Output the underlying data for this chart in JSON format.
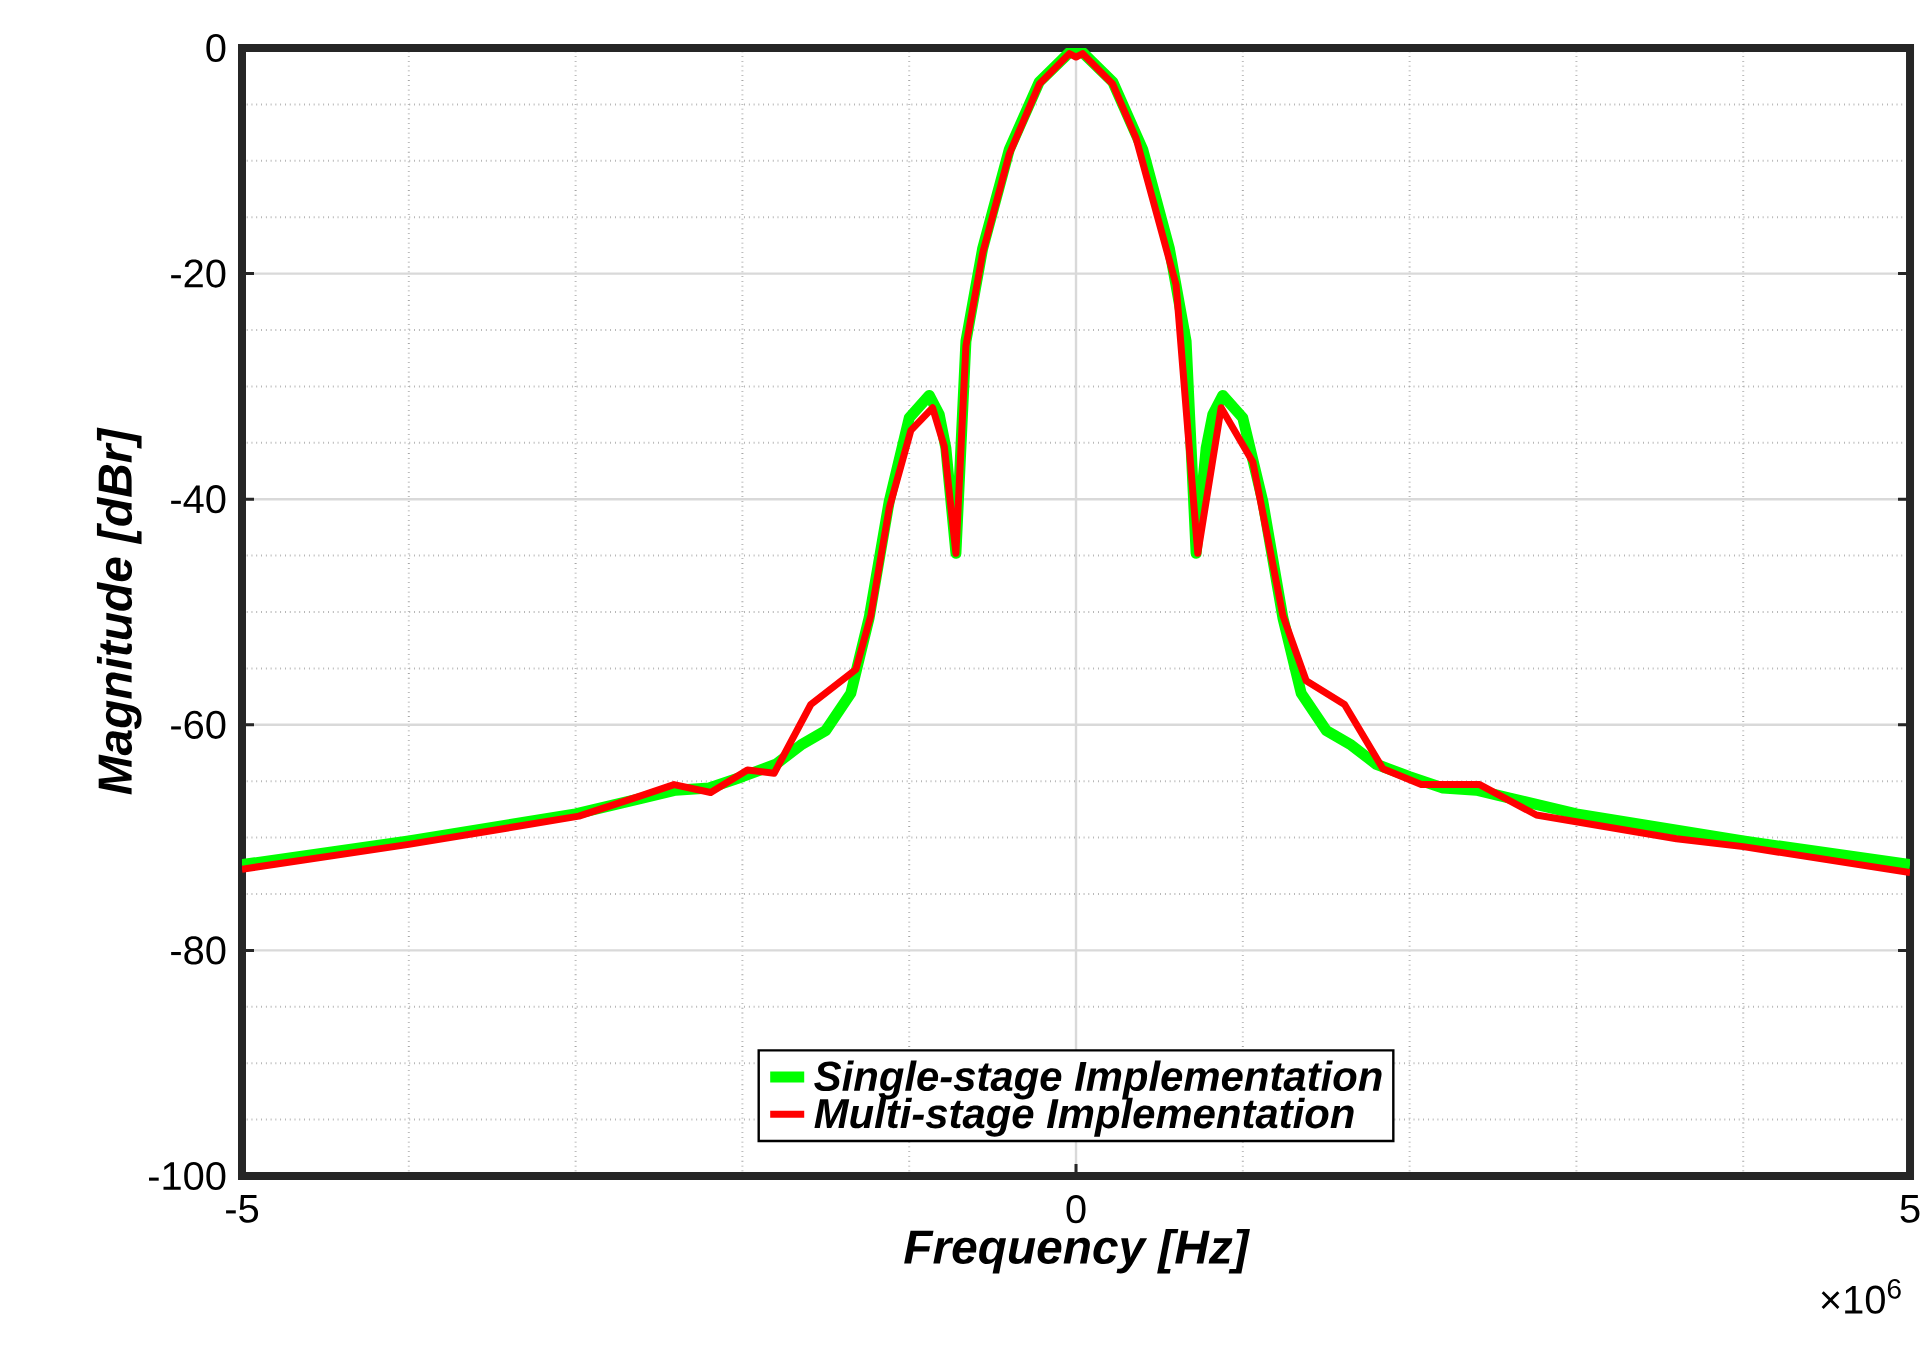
{
  "chart_data": {
    "type": "line",
    "xlabel": "Frequency [Hz]",
    "ylabel": "Magnitude [dBr]",
    "xlim": [
      -5,
      5
    ],
    "xticks": [
      -5,
      0,
      5
    ],
    "ylim": [
      -100,
      0
    ],
    "yticks": [
      -100,
      -80,
      -60,
      -40,
      -20,
      0
    ],
    "grid": true,
    "legend": "bottom",
    "annotations": [
      "×10$^{6}$"
    ],
    "series": [
      {
        "name": "Single-stage Implementation",
        "color": "#00ff00",
        "x": [
          -5,
          -4,
          -3,
          -2.6,
          -2.4,
          -2.2,
          -2,
          -1.8,
          -1.65,
          -1.5,
          -1.35,
          -1.24,
          -1.12,
          -1,
          -0.88,
          -0.82,
          -0.78,
          -0.72,
          -0.66,
          -0.56,
          -0.4,
          -0.22,
          -0.04,
          0,
          0.04,
          0.22,
          0.4,
          0.56,
          0.66,
          0.72,
          0.78,
          0.82,
          0.88,
          1,
          1.12,
          1.24,
          1.35,
          1.5,
          1.65,
          1.8,
          2,
          2.2,
          2.4,
          2.6,
          3,
          4,
          5
        ],
        "values": [
          -72.4,
          -70.3,
          -67.9,
          -66.5,
          -65.8,
          -65.6,
          -64.6,
          -63.5,
          -61.8,
          -60.5,
          -57.2,
          -50.5,
          -40.2,
          -32.8,
          -30.8,
          -32.5,
          -35.5,
          -44.8,
          -26.0,
          -17.8,
          -9.0,
          -3.0,
          -0.4,
          -0.3,
          -0.4,
          -3.0,
          -9.0,
          -17.8,
          -26.0,
          -44.8,
          -35.5,
          -32.5,
          -30.8,
          -32.8,
          -40.2,
          -50.5,
          -57.2,
          -60.5,
          -61.8,
          -63.5,
          -64.6,
          -65.6,
          -65.8,
          -66.5,
          -67.9,
          -70.3,
          -72.4
        ]
      },
      {
        "name": "Multi-stage Implementation",
        "color": "#ff0000",
        "x": [
          -5,
          -4,
          -2.98,
          -2.61,
          -2.41,
          -2.19,
          -1.97,
          -1.81,
          -1.59,
          -1.32,
          -1.23,
          -1.12,
          -0.99,
          -0.86,
          -0.79,
          -0.72,
          -0.66,
          -0.56,
          -0.4,
          -0.22,
          -0.04,
          0,
          0.04,
          0.22,
          0.36,
          0.6,
          0.73,
          0.87,
          1.06,
          1.24,
          1.38,
          1.61,
          1.84,
          2.07,
          2.42,
          2.76,
          3.6,
          4,
          5
        ],
        "values": [
          -72.8,
          -70.6,
          -68.1,
          -66.3,
          -65.3,
          -66.0,
          -64.0,
          -64.3,
          -58.2,
          -55.1,
          -50.3,
          -40.8,
          -33.9,
          -31.9,
          -35.3,
          -44.8,
          -26.4,
          -18.2,
          -9.4,
          -3.2,
          -0.5,
          -0.8,
          -0.5,
          -3.2,
          -8.0,
          -21.0,
          -44.8,
          -31.9,
          -36.7,
          -50.3,
          -56.1,
          -58.2,
          -63.9,
          -65.3,
          -65.3,
          -68.0,
          -70.1,
          -70.8,
          -73.1
        ]
      }
    ]
  }
}
